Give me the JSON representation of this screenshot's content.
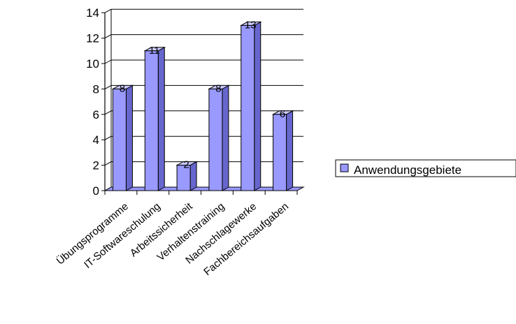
{
  "chart_data": {
    "type": "bar",
    "categories": [
      "Übungsprogramme",
      "IT-Softwareschulung",
      "Arbeitssicherheit",
      "Verhaltenstraining",
      "Nachschlagewerke",
      "Fachbereichsaufgaben"
    ],
    "series": [
      {
        "name": "Anwendungsgebiete",
        "values": [
          8,
          11,
          2,
          8,
          13,
          6
        ],
        "color": "#9999ff"
      }
    ],
    "data_labels": [
      "8",
      "11",
      "2",
      "8",
      "13",
      "6"
    ],
    "y_ticks": [
      "0",
      "2",
      "4",
      "6",
      "8",
      "10",
      "12",
      "14"
    ],
    "ylim": [
      0,
      14
    ],
    "grid": true,
    "three_d": true,
    "legend_position": "right",
    "colors": {
      "bar_front": "#9999ff",
      "bar_side": "#6666cc",
      "bar_top": "#ccccff",
      "floor": "#9999ff",
      "text": "#000000"
    }
  }
}
